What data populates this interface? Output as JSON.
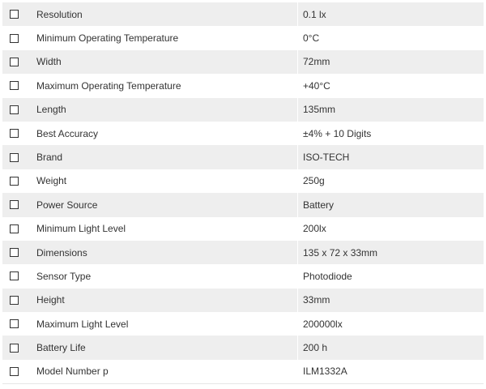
{
  "specs": [
    {
      "name": "Resolution",
      "value": "0.1 lx"
    },
    {
      "name": "Minimum Operating Temperature",
      "value": "0°C"
    },
    {
      "name": "Width",
      "value": "72mm"
    },
    {
      "name": "Maximum Operating Temperature",
      "value": "+40°C"
    },
    {
      "name": "Length",
      "value": "135mm"
    },
    {
      "name": "Best Accuracy",
      "value": "±4% + 10 Digits"
    },
    {
      "name": "Brand",
      "value": "ISO-TECH"
    },
    {
      "name": "Weight",
      "value": "250g"
    },
    {
      "name": "Power Source",
      "value": "Battery"
    },
    {
      "name": "Minimum Light Level",
      "value": "200lx"
    },
    {
      "name": "Dimensions",
      "value": "135 x 72 x 33mm"
    },
    {
      "name": "Sensor Type",
      "value": "Photodiode"
    },
    {
      "name": "Height",
      "value": "33mm"
    },
    {
      "name": "Maximum Light Level",
      "value": "200000lx"
    },
    {
      "name": "Battery Life",
      "value": "200 h"
    },
    {
      "name": "Model Number p",
      "value": "ILM1332A"
    }
  ]
}
